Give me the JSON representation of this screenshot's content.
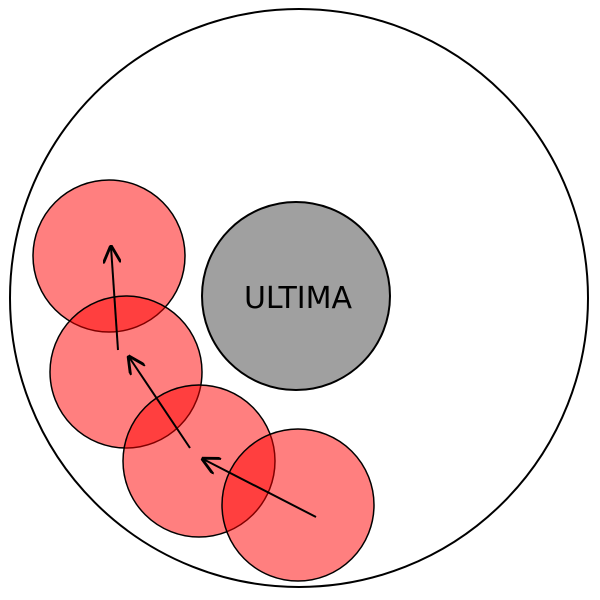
{
  "center": {
    "label": "ULTIMA"
  },
  "colors": {
    "outer_stroke": "#000000",
    "center_fill": "#a0a0a0",
    "path_fill": "#ff0000",
    "path_opacity": 0.5,
    "arrow": "#000000"
  },
  "path_circle_count": 4,
  "arrow_count": 3
}
